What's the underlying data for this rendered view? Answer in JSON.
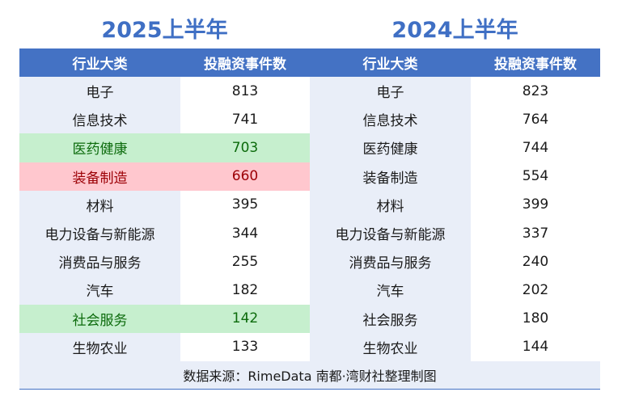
{
  "titles": {
    "left": "2025上半年",
    "right": "2024上半年"
  },
  "headers": [
    "行业大类",
    "投融资事件数",
    "行业大类",
    "投融资事件数"
  ],
  "rows_2025": [
    {
      "industry": "电子",
      "count": "813",
      "highlight": ""
    },
    {
      "industry": "信息技术",
      "count": "741",
      "highlight": ""
    },
    {
      "industry": "医药健康",
      "count": "703",
      "highlight": "green"
    },
    {
      "industry": "装备制造",
      "count": "660",
      "highlight": "red"
    },
    {
      "industry": "材料",
      "count": "395",
      "highlight": ""
    },
    {
      "industry": "电力设备与新能源",
      "count": "344",
      "highlight": ""
    },
    {
      "industry": "消费品与服务",
      "count": "255",
      "highlight": ""
    },
    {
      "industry": "汽车",
      "count": "182",
      "highlight": ""
    },
    {
      "industry": "社会服务",
      "count": "142",
      "highlight": "green"
    },
    {
      "industry": "生物农业",
      "count": "133",
      "highlight": ""
    }
  ],
  "rows_2024": [
    {
      "industry": "电子",
      "count": "823"
    },
    {
      "industry": "信息技术",
      "count": "764"
    },
    {
      "industry": "医药健康",
      "count": "744"
    },
    {
      "industry": "装备制造",
      "count": "554"
    },
    {
      "industry": "材料",
      "count": "399"
    },
    {
      "industry": "电力设备与新能源",
      "count": "337"
    },
    {
      "industry": "消费品与服务",
      "count": "240"
    },
    {
      "industry": "汽车",
      "count": "202"
    },
    {
      "industry": "社会服务",
      "count": "180"
    },
    {
      "industry": "生物农业",
      "count": "144"
    }
  ],
  "footer": "数据来源：RimeData 南都·湾财社整理制图",
  "colors": {
    "title": "#3f6fc4",
    "header_bg": "#4472c4",
    "highlight_green_bg": "#c6efce",
    "highlight_green_text": "#0c6b0c",
    "highlight_red_bg": "#ffc7ce",
    "highlight_red_text": "#9c0006"
  }
}
